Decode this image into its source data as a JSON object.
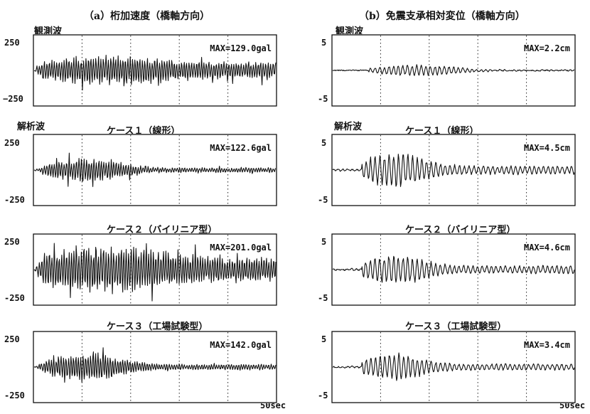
{
  "columns": [
    {
      "title": "（a）桁加速度（橋軸方向）",
      "y_max_label": "250",
      "y_min_label": "-250",
      "end_label": "",
      "panels": [
        {
          "label_left": "観測波",
          "case_title": "",
          "max_text": "MAX=129.0gal",
          "y_min_label": "−250"
        },
        {
          "label_left": "解析波",
          "case_title": "ケース１（線形）",
          "max_text": "MAX=122.6gal"
        },
        {
          "label_left": "",
          "case_title": "ケース２（バイリニア型）",
          "max_text": "MAX=201.0gal"
        },
        {
          "label_left": "",
          "case_title": "ケース３（工場試験型）",
          "max_text": "MAX=142.0gal"
        }
      ]
    },
    {
      "title": "（b）免震支承相対変位（橋軸方向）",
      "y_max_label": "5",
      "y_min_label": "-5",
      "end_label": "50sec",
      "panels": [
        {
          "label_left": "観測波",
          "case_title": "",
          "max_text": "MAX=2.2cm"
        },
        {
          "label_left": "解析波",
          "case_title": "ケース１（線形）",
          "max_text": "MAX=4.5cm"
        },
        {
          "label_left": "",
          "case_title": "ケース２（バイリニア型）",
          "max_text": "MAX=4.6cm"
        },
        {
          "label_left": "",
          "case_title": "ケース３（工場試験型）",
          "max_text": "MAX=3.4cm"
        }
      ]
    }
  ],
  "left_end_label": "50sec",
  "chart_data": [
    {
      "type": "line",
      "title": "（a）桁加速度（橋軸方向）",
      "panel": "観測波",
      "x_range": [
        0,
        50
      ],
      "x_unit": "sec",
      "ylim": [
        -250,
        250
      ],
      "y_unit": "gal",
      "max_abs": 129.0,
      "grid": "dotted vertical"
    },
    {
      "type": "line",
      "title": "（a）桁加速度（橋軸方向）",
      "panel": "ケース１（線形）",
      "x_range": [
        0,
        50
      ],
      "x_unit": "sec",
      "ylim": [
        -250,
        250
      ],
      "y_unit": "gal",
      "max_abs": 122.6,
      "grid": "dotted vertical"
    },
    {
      "type": "line",
      "title": "（a）桁加速度（橋軸方向）",
      "panel": "ケース２（バイリニア型）",
      "x_range": [
        0,
        50
      ],
      "x_unit": "sec",
      "ylim": [
        -250,
        250
      ],
      "y_unit": "gal",
      "max_abs": 201.0,
      "grid": "dotted vertical"
    },
    {
      "type": "line",
      "title": "（a）桁加速度（橋軸方向）",
      "panel": "ケース３（工場試験型）",
      "x_range": [
        0,
        50
      ],
      "x_unit": "sec",
      "ylim": [
        -250,
        250
      ],
      "y_unit": "gal",
      "max_abs": 142.0,
      "grid": "dotted vertical"
    },
    {
      "type": "line",
      "title": "（b）免震支承相対変位（橋軸方向）",
      "panel": "観測波",
      "x_range": [
        0,
        50
      ],
      "x_unit": "sec",
      "ylim": [
        -5,
        5
      ],
      "y_unit": "cm",
      "max_abs": 2.2,
      "grid": "dotted vertical"
    },
    {
      "type": "line",
      "title": "（b）免震支承相対変位（橋軸方向）",
      "panel": "ケース１（線形）",
      "x_range": [
        0,
        50
      ],
      "x_unit": "sec",
      "ylim": [
        -5,
        5
      ],
      "y_unit": "cm",
      "max_abs": 4.5,
      "grid": "dotted vertical"
    },
    {
      "type": "line",
      "title": "（b）免震支承相対変位（橋軸方向）",
      "panel": "ケース２（バイリニア型）",
      "x_range": [
        0,
        50
      ],
      "x_unit": "sec",
      "ylim": [
        -5,
        5
      ],
      "y_unit": "cm",
      "max_abs": 4.6,
      "grid": "dotted vertical"
    },
    {
      "type": "line",
      "title": "（b）免震支承相対変位（橋軸方向）",
      "panel": "ケース３（工場試験型）",
      "x_range": [
        0,
        50
      ],
      "x_unit": "sec",
      "ylim": [
        -5,
        5
      ],
      "y_unit": "cm",
      "max_abs": 3.4,
      "grid": "dotted vertical"
    }
  ]
}
